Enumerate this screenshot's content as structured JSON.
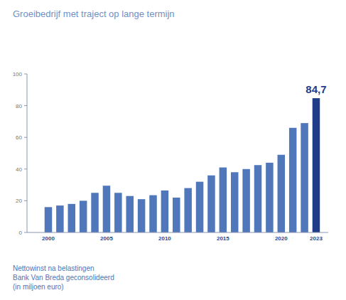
{
  "chart_data": {
    "type": "bar",
    "title": "Groeibedrijf met traject op lange termijn",
    "caption": [
      "Nettowinst na belastingen",
      "Bank Van Breda geconsolideerd",
      "(in miljoen euro)"
    ],
    "categories": [
      "2000",
      null,
      null,
      null,
      null,
      "2005",
      null,
      null,
      null,
      null,
      "2010",
      null,
      null,
      null,
      null,
      "2015",
      null,
      null,
      null,
      null,
      "2020",
      null,
      null,
      "2023"
    ],
    "values": [
      16,
      17,
      18,
      20,
      25,
      29.5,
      25,
      23,
      21,
      23.5,
      26.5,
      22,
      28,
      32,
      36,
      41,
      38,
      40,
      42.5,
      44,
      49,
      66,
      69,
      84.7
    ],
    "value_labels": [
      null,
      null,
      null,
      null,
      null,
      null,
      null,
      null,
      null,
      null,
      null,
      null,
      null,
      null,
      null,
      null,
      null,
      null,
      null,
      null,
      null,
      null,
      null,
      "84,7"
    ],
    "data_labels": true,
    "colors": [
      "#5077ba",
      "#5077ba",
      "#5077ba",
      "#5077ba",
      "#5077ba",
      "#5077ba",
      "#5077ba",
      "#5077ba",
      "#5077ba",
      "#5077ba",
      "#5077ba",
      "#5077ba",
      "#5077ba",
      "#5077ba",
      "#5077ba",
      "#5077ba",
      "#5077ba",
      "#5077ba",
      "#5077ba",
      "#5077ba",
      "#5077ba",
      "#5077ba",
      "#5077ba",
      "#1f3c88"
    ],
    "ylim": [
      0,
      100
    ],
    "yticks": [
      0,
      20,
      40,
      60,
      80,
      100
    ],
    "grid": false
  }
}
